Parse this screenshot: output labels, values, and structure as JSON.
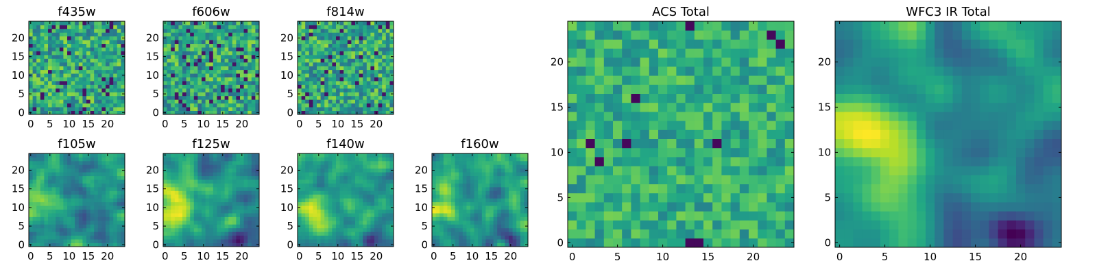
{
  "chart_data": [
    {
      "type": "heatmap",
      "title": "f435w",
      "seed": 11,
      "style": "noise",
      "xticks": [
        "0",
        "5",
        "10",
        "15",
        "20"
      ],
      "yticks": [
        "0",
        "5",
        "10",
        "15",
        "20"
      ],
      "xlim": [
        -0.5,
        24.5
      ],
      "ylim": [
        -0.5,
        24.5
      ],
      "grid": false,
      "colormap": "viridis"
    },
    {
      "type": "heatmap",
      "title": "f606w",
      "seed": 23,
      "style": "noise",
      "xticks": [
        "0",
        "5",
        "10",
        "15",
        "20"
      ],
      "yticks": [
        "0",
        "5",
        "10",
        "15",
        "20"
      ],
      "xlim": [
        -0.5,
        24.5
      ],
      "ylim": [
        -0.5,
        24.5
      ],
      "grid": false,
      "colormap": "viridis"
    },
    {
      "type": "heatmap",
      "title": "f814w",
      "seed": 37,
      "style": "noise",
      "xticks": [
        "0",
        "5",
        "10",
        "15",
        "20"
      ],
      "yticks": [
        "0",
        "5",
        "10",
        "15",
        "20"
      ],
      "xlim": [
        -0.5,
        24.5
      ],
      "ylim": [
        -0.5,
        24.5
      ],
      "grid": false,
      "colormap": "viridis"
    },
    {
      "type": "heatmap",
      "title": "f105w",
      "seed": 41,
      "style": "smooth",
      "xticks": [
        "0",
        "5",
        "10",
        "15",
        "20"
      ],
      "yticks": [
        "0",
        "5",
        "10",
        "15",
        "20"
      ],
      "xlim": [
        -0.5,
        24.5
      ],
      "ylim": [
        -0.5,
        24.5
      ],
      "grid": false,
      "colormap": "viridis"
    },
    {
      "type": "heatmap",
      "title": "f125w",
      "seed": 53,
      "style": "smooth",
      "xticks": [
        "0",
        "5",
        "10",
        "15",
        "20"
      ],
      "yticks": [
        "0",
        "5",
        "10",
        "15",
        "20"
      ],
      "xlim": [
        -0.5,
        24.5
      ],
      "ylim": [
        -0.5,
        24.5
      ],
      "grid": false,
      "colormap": "viridis"
    },
    {
      "type": "heatmap",
      "title": "f140w",
      "seed": 67,
      "style": "smooth",
      "xticks": [
        "0",
        "5",
        "10",
        "15",
        "20"
      ],
      "yticks": [
        "0",
        "5",
        "10",
        "15",
        "20"
      ],
      "xlim": [
        -0.5,
        24.5
      ],
      "ylim": [
        -0.5,
        24.5
      ],
      "grid": false,
      "colormap": "viridis"
    },
    {
      "type": "heatmap",
      "title": "f160w",
      "seed": 79,
      "style": "smooth",
      "xticks": [
        "0",
        "5",
        "10",
        "15",
        "20"
      ],
      "yticks": [
        "0",
        "5",
        "10",
        "15",
        "20"
      ],
      "xlim": [
        -0.5,
        24.5
      ],
      "ylim": [
        -0.5,
        24.5
      ],
      "grid": false,
      "colormap": "viridis"
    },
    {
      "type": "heatmap",
      "title": "ACS Total",
      "seed": 97,
      "style": "bright",
      "xticks": [
        "0",
        "5",
        "10",
        "15",
        "20"
      ],
      "yticks": [
        "0",
        "5",
        "10",
        "15",
        "20"
      ],
      "xlim": [
        -0.5,
        24.5
      ],
      "ylim": [
        -0.5,
        24.5
      ],
      "grid": false,
      "colormap": "viridis"
    },
    {
      "type": "heatmap",
      "title": "WFC3 IR Total",
      "seed": 101,
      "style": "ir",
      "xticks": [
        "0",
        "5",
        "10",
        "15",
        "20"
      ],
      "yticks": [
        "0",
        "5",
        "10",
        "15",
        "20"
      ],
      "xlim": [
        -0.5,
        24.5
      ],
      "ylim": [
        -0.5,
        24.5
      ],
      "grid": false,
      "colormap": "viridis"
    }
  ]
}
